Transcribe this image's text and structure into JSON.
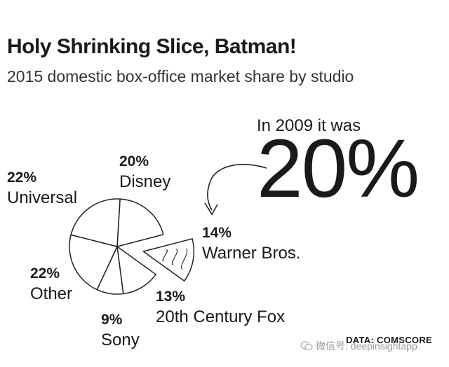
{
  "title": "Holy Shrinking Slice, Batman!",
  "subtitle": "2015 domestic box-office market share by studio",
  "callout": {
    "line": "In 2009 it was",
    "big": "20%"
  },
  "source": "DATA: COMSCORE",
  "watermark": "微信号: deepinsightapp",
  "chart_data": {
    "type": "pie",
    "title": "Holy Shrinking Slice, Batman!",
    "subtitle": "2015 domestic box-office market share by studio",
    "slices": [
      {
        "label": "Disney",
        "value": 20,
        "value_label": "20%",
        "exploded": false
      },
      {
        "label": "Warner Bros.",
        "value": 14,
        "value_label": "14%",
        "exploded": true
      },
      {
        "label": "20th Century Fox",
        "value": 13,
        "value_label": "13%",
        "exploded": false
      },
      {
        "label": "Sony",
        "value": 9,
        "value_label": "9%",
        "exploded": false
      },
      {
        "label": "Other",
        "value": 22,
        "value_label": "22%",
        "exploded": false
      },
      {
        "label": "Universal",
        "value": 22,
        "value_label": "22%",
        "exploded": false
      }
    ],
    "annotation": "In 2009 it was 20%",
    "source": "DATA: COMSCORE"
  }
}
